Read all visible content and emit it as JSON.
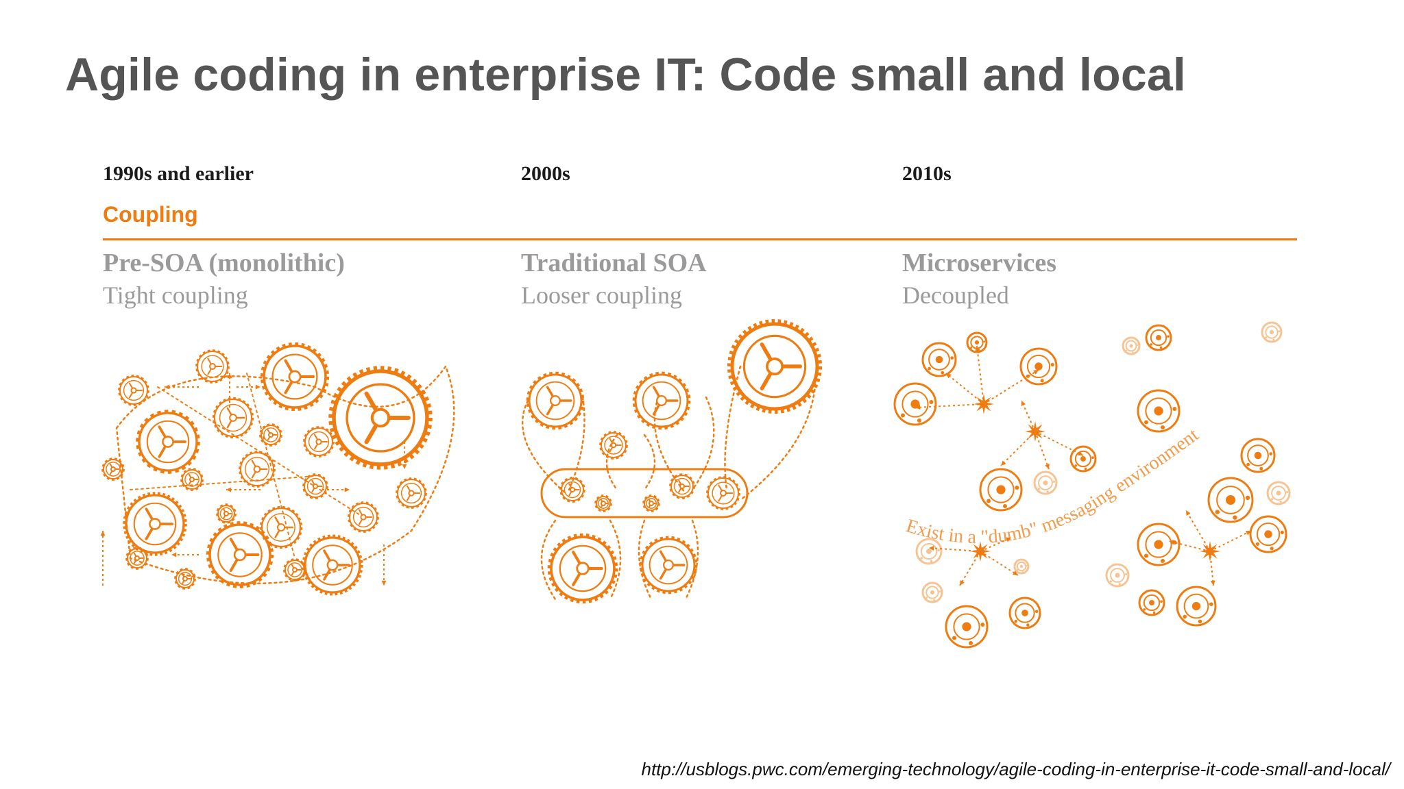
{
  "title": "Agile coding in enterprise IT: Code small and local",
  "figure": {
    "eras": [
      "1990s and earlier",
      "2000s",
      "2010s"
    ],
    "axis_label": "Coupling",
    "architectures": [
      {
        "name": "Pre-SOA (monolithic)",
        "description": "Tight coupling"
      },
      {
        "name": "Traditional SOA",
        "description": "Looser coupling"
      },
      {
        "name": "Microservices",
        "description": "Decoupled"
      }
    ],
    "curved_caption": "Exist in a \"dumb\" messaging environment"
  },
  "source_url": "http://usblogs.pwc.com/emerging-technology/agile-coding-in-enterprise-it-code-small-and-local/",
  "colors": {
    "accent": "#ee7c10",
    "title": "#555555",
    "muted_text": "#9a9a9a"
  }
}
